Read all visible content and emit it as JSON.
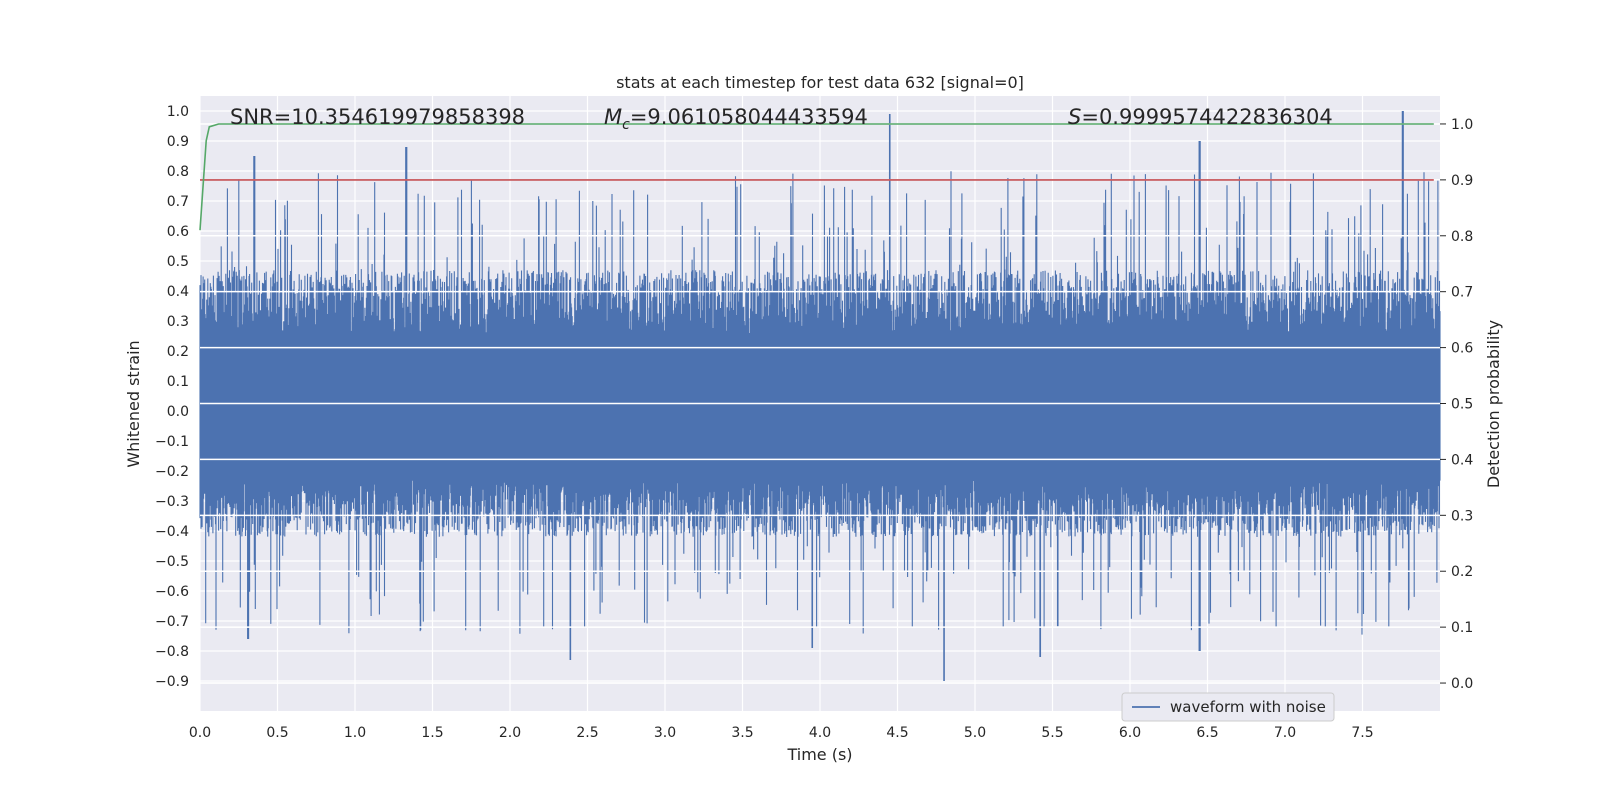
{
  "chart_data": {
    "type": "line",
    "title": "stats at each timestep for test data 632 [signal=0]",
    "xlabel": "Time (s)",
    "ylabel": "Whitened strain",
    "y2label": "Detection probability",
    "xlim": [
      0.0,
      8.0
    ],
    "ylim": [
      -1.0,
      1.05
    ],
    "y2lim": [
      -0.05,
      1.05
    ],
    "xticks": [
      "0.0",
      "0.5",
      "1.0",
      "1.5",
      "2.0",
      "2.5",
      "3.0",
      "3.5",
      "4.0",
      "4.5",
      "5.0",
      "5.5",
      "6.0",
      "6.5",
      "7.0",
      "7.5"
    ],
    "yticks": [
      "−0.9",
      "−0.8",
      "−0.7",
      "−0.6",
      "−0.5",
      "−0.4",
      "−0.3",
      "−0.2",
      "−0.1",
      "0.0",
      "0.1",
      "0.2",
      "0.3",
      "0.4",
      "0.5",
      "0.6",
      "0.7",
      "0.8",
      "0.9",
      "1.0"
    ],
    "y2ticks": [
      "0.0",
      "0.1",
      "0.2",
      "0.3",
      "0.4",
      "0.5",
      "0.6",
      "0.7",
      "0.8",
      "0.9",
      "1.0"
    ],
    "grid": true,
    "legend_position": "lower-right",
    "annotations": {
      "snr": "SNR=10.354619979858398",
      "mc_symbol": "M",
      "mc_sub": "c",
      "mc_value": "=9.061058044433594",
      "s_symbol": "S",
      "s_value": "=0.9999574422836304"
    },
    "series": [
      {
        "name": "waveform with noise",
        "axis": "left",
        "color": "#4c72b0",
        "kind": "noise",
        "t_range": [
          0.0,
          8.0
        ],
        "typical_envelope": [
          -0.42,
          0.47
        ],
        "peaks": [
          {
            "t": 0.35,
            "v": 0.85
          },
          {
            "t": 1.33,
            "v": 0.88
          },
          {
            "t": 4.45,
            "v": 0.99
          },
          {
            "t": 6.45,
            "v": 0.9
          },
          {
            "t": 7.76,
            "v": 1.0
          },
          {
            "t": 0.31,
            "v": -0.76
          },
          {
            "t": 2.39,
            "v": -0.83
          },
          {
            "t": 4.8,
            "v": -0.9
          },
          {
            "t": 6.45,
            "v": -0.8
          },
          {
            "t": 3.95,
            "v": -0.79
          },
          {
            "t": 5.42,
            "v": -0.82
          }
        ]
      },
      {
        "name": "",
        "axis": "right",
        "color": "#55a868",
        "kind": "line",
        "x": [
          0.0,
          0.04,
          0.06,
          0.12,
          7.96
        ],
        "y": [
          0.81,
          0.97,
          0.995,
          1.0,
          1.0
        ]
      },
      {
        "name": "",
        "axis": "right",
        "color": "#c44e52",
        "kind": "hline",
        "x": [
          0.0,
          7.96
        ],
        "y": [
          0.9,
          0.9
        ]
      }
    ],
    "colors": {
      "axes_bg": "#eaeaf2",
      "grid": "#ffffff",
      "text": "#262626"
    }
  }
}
